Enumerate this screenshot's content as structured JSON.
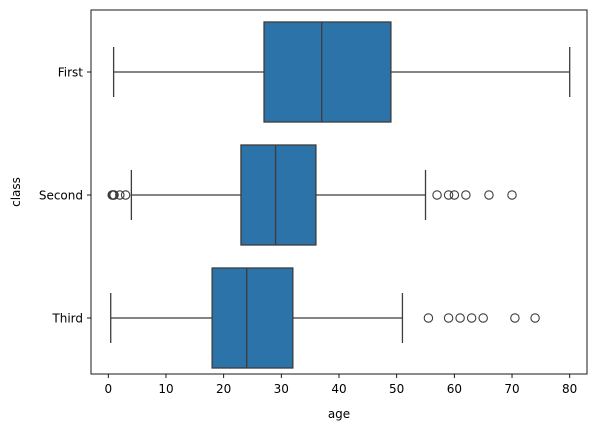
{
  "chart_data": {
    "type": "boxplot",
    "orientation": "horizontal",
    "title": "",
    "xlabel": "age",
    "ylabel": "class",
    "xlim": [
      -3,
      83
    ],
    "xticks": [
      0,
      10,
      20,
      30,
      40,
      50,
      60,
      70,
      80
    ],
    "categories": [
      "First",
      "Second",
      "Third"
    ],
    "box_color": "#2b73a8",
    "line_color": "#3c3c3c",
    "grid": false,
    "series": [
      {
        "category": "First",
        "whisker_low": 0.92,
        "q1": 27.0,
        "median": 37.0,
        "q3": 49.0,
        "whisker_high": 80.0,
        "outliers": []
      },
      {
        "category": "Second",
        "whisker_low": 4.0,
        "q1": 23.0,
        "median": 29.0,
        "q3": 36.0,
        "whisker_high": 55.0,
        "outliers": [
          0.67,
          0.83,
          0.83,
          1.0,
          2.0,
          3.0,
          57.0,
          59.0,
          60.0,
          62.0,
          66.0,
          70.0
        ]
      },
      {
        "category": "Third",
        "whisker_low": 0.42,
        "q1": 18.0,
        "median": 24.0,
        "q3": 32.0,
        "whisker_high": 51.0,
        "outliers": [
          55.5,
          59.0,
          61.0,
          63.0,
          65.0,
          70.5,
          74.0
        ]
      }
    ]
  }
}
